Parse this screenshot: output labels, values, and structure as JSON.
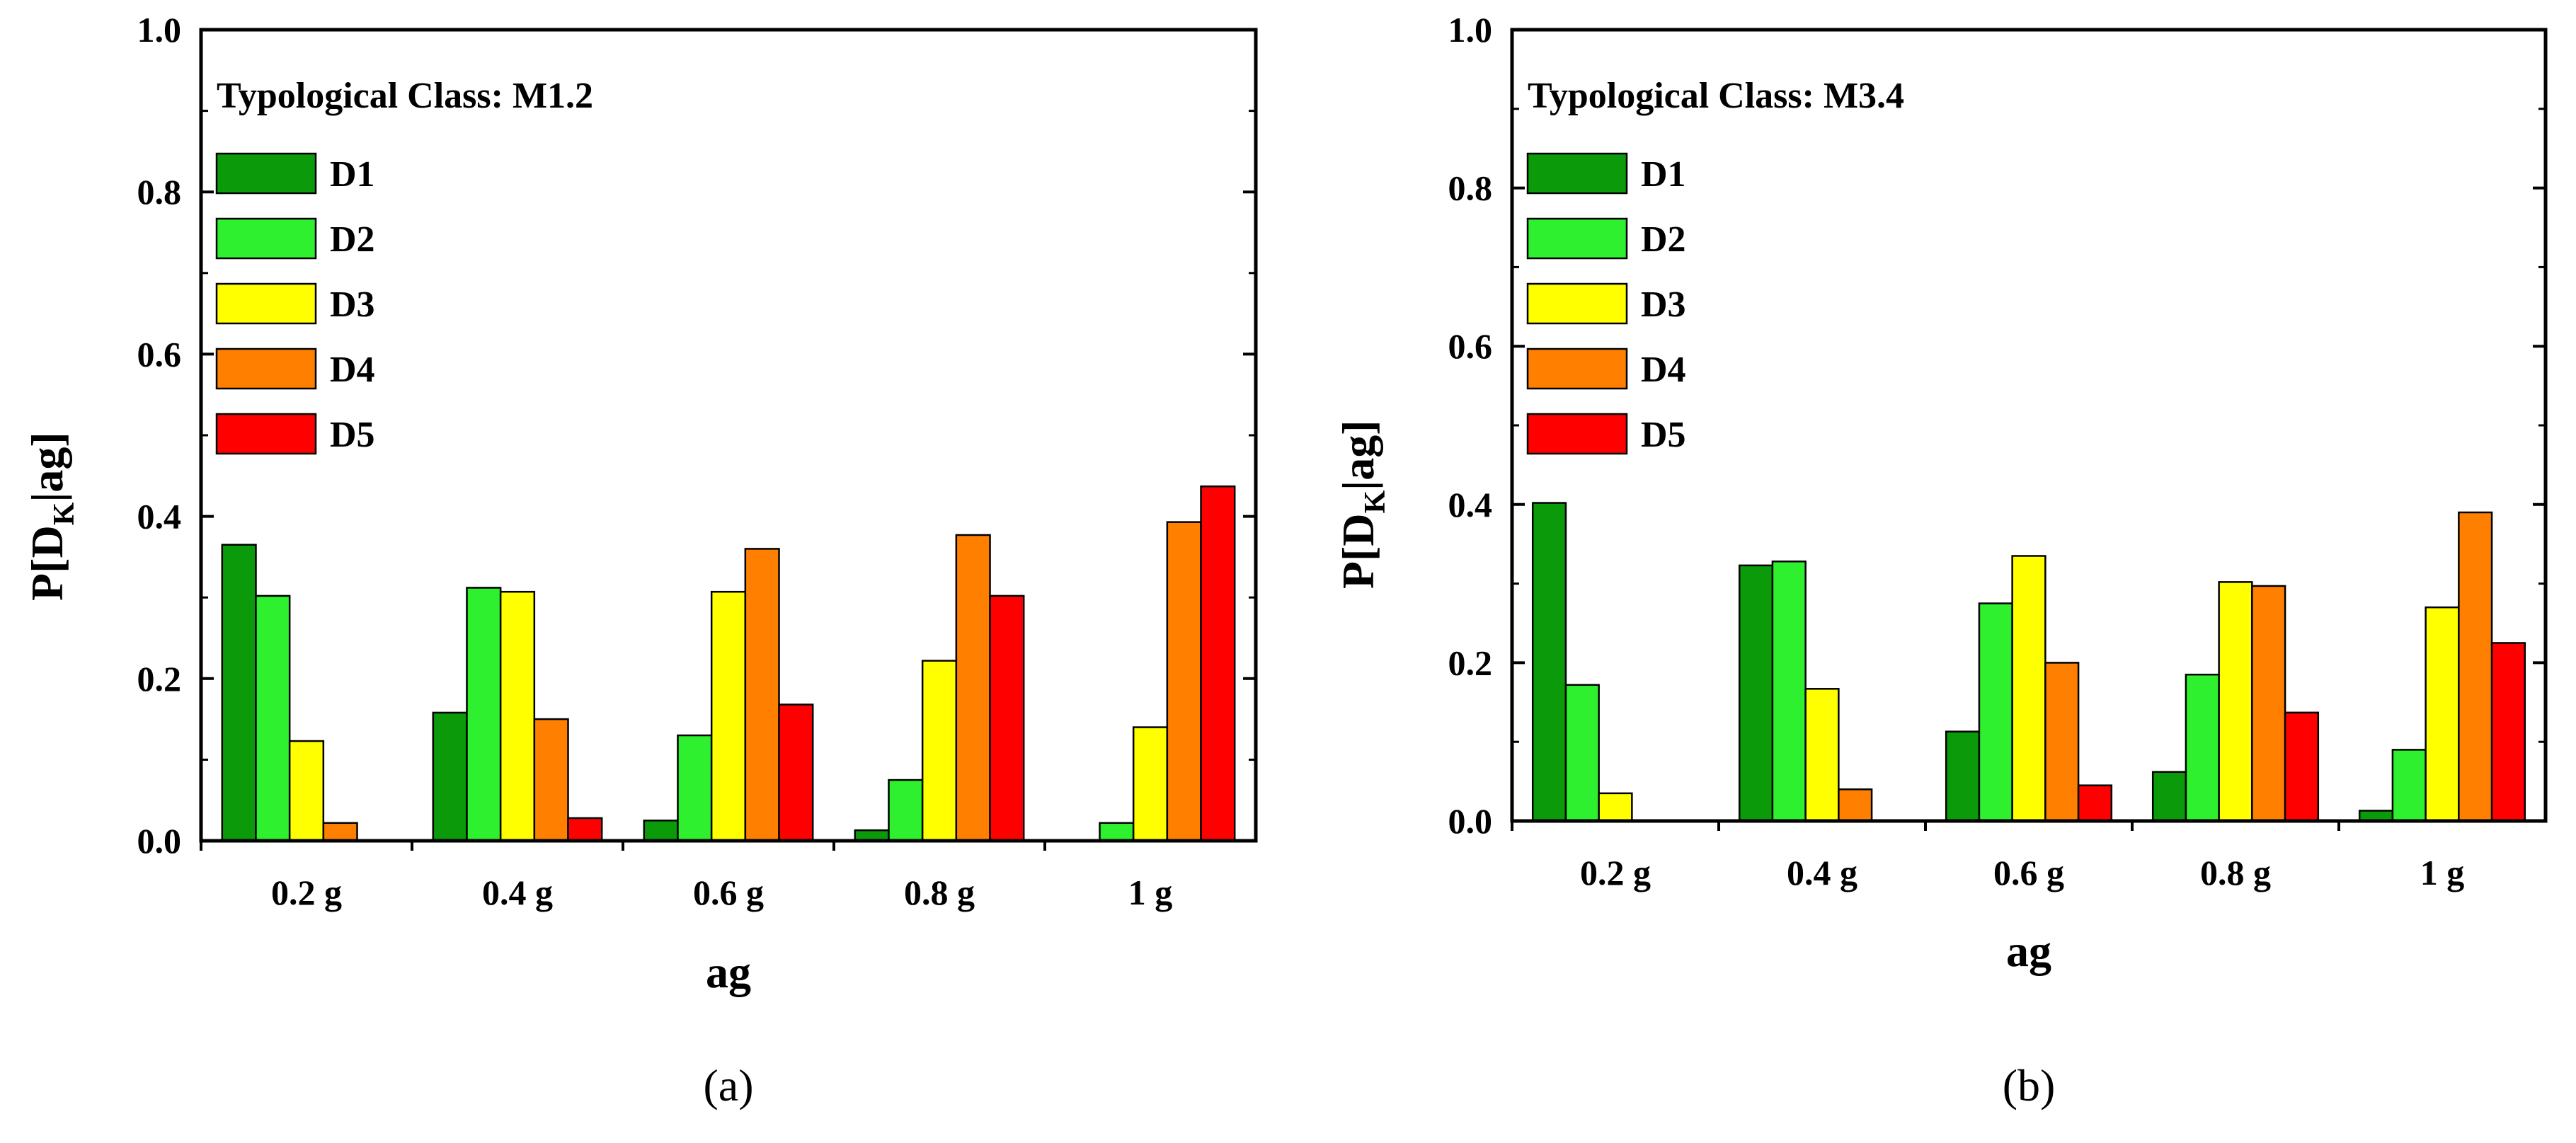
{
  "chart_data": [
    {
      "type": "bar",
      "title": "Typological Class: M1.2",
      "caption": "(a)",
      "xlabel": "ag",
      "ylabel_parts": {
        "p": "P[D",
        "sub": "K",
        "rest": "|ag]"
      },
      "ylim": [
        0,
        1.0
      ],
      "yticks": [
        "0.0",
        "0.2",
        "0.4",
        "0.6",
        "0.8",
        "1.0"
      ],
      "legend_position": "top-left",
      "categories": [
        "0.2 g",
        "0.4 g",
        "0.6 g",
        "0.8 g",
        "1 g"
      ],
      "series": [
        {
          "name": "D1",
          "color": "#0a9a0a",
          "values": [
            0.365,
            0.158,
            0.025,
            0.013,
            0.0
          ]
        },
        {
          "name": "D2",
          "color": "#2ef02e",
          "values": [
            0.302,
            0.312,
            0.13,
            0.075,
            0.022
          ]
        },
        {
          "name": "D3",
          "color": "#ffff00",
          "values": [
            0.123,
            0.307,
            0.307,
            0.222,
            0.14
          ]
        },
        {
          "name": "D4",
          "color": "#ff7f00",
          "values": [
            0.022,
            0.15,
            0.36,
            0.377,
            0.393
          ]
        },
        {
          "name": "D5",
          "color": "#ff0000",
          "values": [
            0.0,
            0.028,
            0.168,
            0.302,
            0.437
          ]
        }
      ]
    },
    {
      "type": "bar",
      "title": "Typological Class: M3.4",
      "caption": "(b)",
      "xlabel": "ag",
      "ylabel_parts": {
        "p": "P[D",
        "sub": "K",
        "rest": "|ag]"
      },
      "ylim": [
        0,
        1.0
      ],
      "yticks": [
        "0.0",
        "0.2",
        "0.4",
        "0.6",
        "0.8",
        "1.0"
      ],
      "legend_position": "top-left",
      "categories": [
        "0.2 g",
        "0.4 g",
        "0.6 g",
        "0.8 g",
        "1 g"
      ],
      "series": [
        {
          "name": "D1",
          "color": "#0a9a0a",
          "values": [
            0.402,
            0.323,
            0.113,
            0.062,
            0.013
          ]
        },
        {
          "name": "D2",
          "color": "#2ef02e",
          "values": [
            0.172,
            0.328,
            0.275,
            0.185,
            0.09
          ]
        },
        {
          "name": "D3",
          "color": "#ffff00",
          "values": [
            0.035,
            0.167,
            0.335,
            0.302,
            0.27
          ]
        },
        {
          "name": "D4",
          "color": "#ff7f00",
          "values": [
            0.0,
            0.04,
            0.2,
            0.297,
            0.39
          ]
        },
        {
          "name": "D5",
          "color": "#ff0000",
          "values": [
            0.0,
            0.0,
            0.045,
            0.137,
            0.225
          ]
        }
      ]
    }
  ]
}
